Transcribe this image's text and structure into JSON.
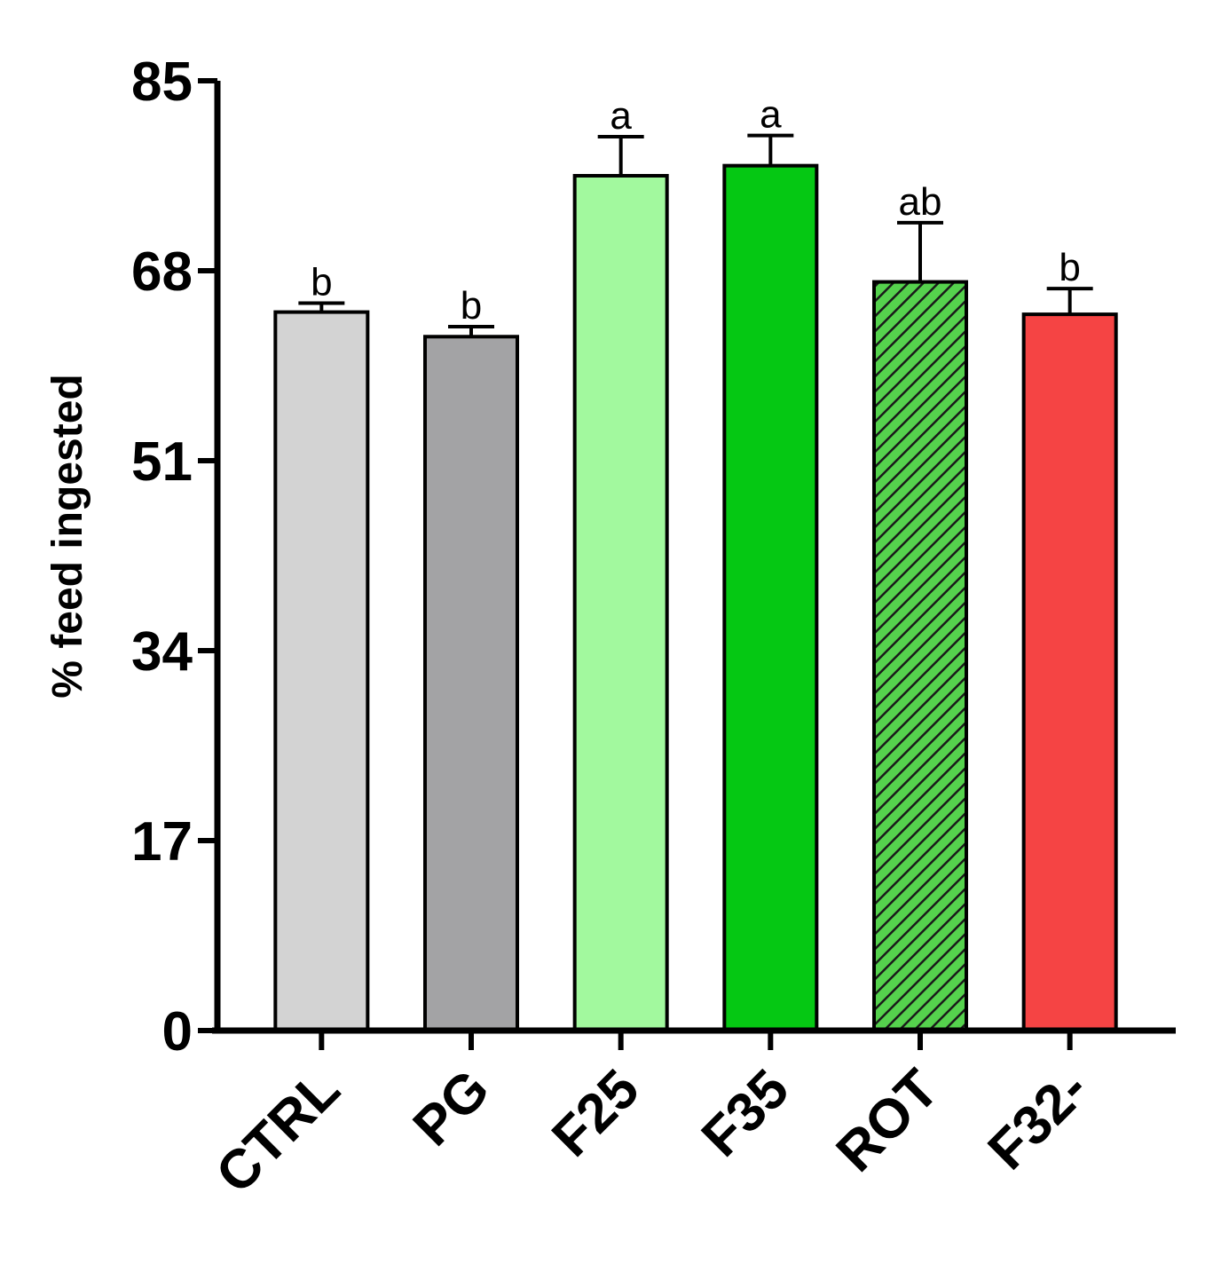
{
  "chart_data": {
    "type": "bar",
    "title": "",
    "xlabel": "",
    "ylabel": "% feed ingested",
    "ylim": [
      0,
      85
    ],
    "yticks": [
      0,
      17,
      34,
      51,
      68,
      85
    ],
    "grid": false,
    "legend": "none",
    "categories": [
      "CTRL",
      "PG",
      "F25",
      "F35",
      "ROT",
      "F32-"
    ],
    "values": [
      64.3,
      62.1,
      76.5,
      77.4,
      67.0,
      64.1
    ],
    "errors": [
      0.8,
      0.9,
      3.5,
      2.7,
      5.3,
      2.3
    ],
    "significance": [
      "b",
      "b",
      "a",
      "a",
      "ab",
      "b"
    ],
    "colors": [
      "#d3d3d3",
      "#a3a3a5",
      "#a2f99e",
      "#05c813",
      "#55d24d",
      "#f54444"
    ],
    "hatched": [
      false,
      false,
      false,
      false,
      true,
      false
    ]
  }
}
